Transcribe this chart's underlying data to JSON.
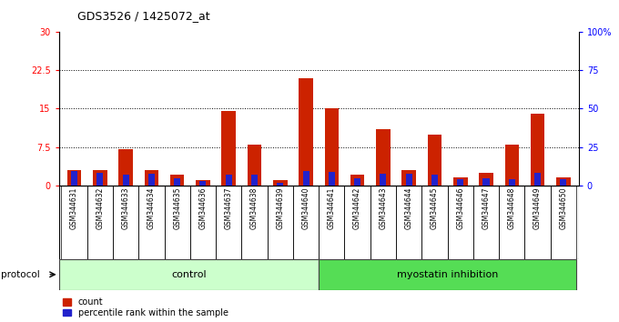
{
  "title": "GDS3526 / 1425072_at",
  "samples": [
    "GSM344631",
    "GSM344632",
    "GSM344633",
    "GSM344634",
    "GSM344635",
    "GSM344636",
    "GSM344637",
    "GSM344638",
    "GSM344639",
    "GSM344640",
    "GSM344641",
    "GSM344642",
    "GSM344643",
    "GSM344644",
    "GSM344645",
    "GSM344646",
    "GSM344647",
    "GSM344648",
    "GSM344649",
    "GSM344650"
  ],
  "count": [
    3.0,
    3.0,
    7.0,
    3.0,
    2.0,
    1.0,
    14.5,
    8.0,
    1.0,
    21.0,
    15.0,
    2.0,
    11.0,
    3.0,
    10.0,
    1.5,
    2.5,
    8.0,
    14.0,
    1.5
  ],
  "percentile_pct": [
    9.0,
    8.0,
    7.0,
    7.5,
    4.5,
    2.5,
    7.0,
    7.0,
    1.5,
    9.5,
    8.5,
    4.5,
    7.5,
    7.5,
    7.0,
    4.0,
    4.5,
    4.0,
    8.0,
    4.0
  ],
  "control_count": 10,
  "groups": [
    "control",
    "myostatin inhibition"
  ],
  "ctrl_color": "#ccffcc",
  "myo_color": "#55dd55",
  "yticks_left": [
    0,
    7.5,
    15,
    22.5,
    30
  ],
  "ytick_labels_left": [
    "0",
    "7.5",
    "15",
    "22.5",
    "30"
  ],
  "yticks_right": [
    0,
    25,
    50,
    75,
    100
  ],
  "ytick_labels_right": [
    "0",
    "25",
    "50",
    "75",
    "100%"
  ],
  "grid_lines": [
    7.5,
    15,
    22.5
  ],
  "bar_color_count": "#cc2200",
  "bar_color_percentile": "#2222cc",
  "xtick_bg": "#cccccc",
  "legend_count": "count",
  "legend_percentile": "percentile rank within the sample",
  "protocol_label": "protocol"
}
